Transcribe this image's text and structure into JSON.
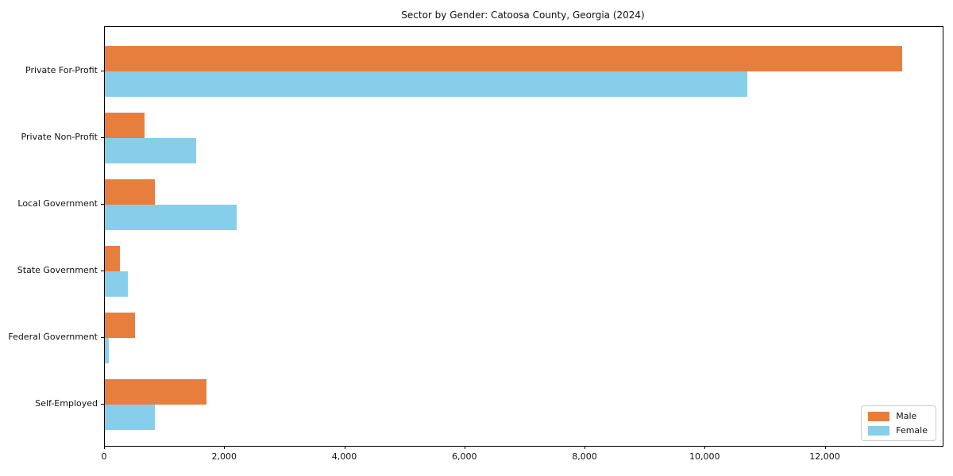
{
  "chart_data": {
    "type": "bar",
    "orientation": "horizontal",
    "title": "Sector by Gender: Catoosa County, Georgia (2024)",
    "categories": [
      "Private For-Profit",
      "Private Non-Profit",
      "Local Government",
      "State Government",
      "Federal Government",
      "Self-Employed"
    ],
    "series": [
      {
        "name": "Male",
        "color": "#e87e3e",
        "values": [
          13280,
          660,
          830,
          250,
          500,
          1690
        ]
      },
      {
        "name": "Female",
        "color": "#87ceeb",
        "values": [
          10700,
          1520,
          2200,
          385,
          65,
          835
        ]
      }
    ],
    "xlabel": "",
    "ylabel": "",
    "xlim": [
      0,
      13950
    ],
    "xticks": [
      0,
      2000,
      4000,
      6000,
      8000,
      10000,
      12000
    ],
    "xtick_labels": [
      "0",
      "2,000",
      "4,000",
      "6,000",
      "8,000",
      "10,000",
      "12,000"
    ],
    "grid": false,
    "legend": {
      "position": "lower right",
      "entries": [
        "Male",
        "Female"
      ]
    },
    "colors": {
      "male": "#e87e3e",
      "female": "#87ceeb",
      "spine": "#000000",
      "legend_border": "#cccccc",
      "text": "#111111"
    }
  }
}
